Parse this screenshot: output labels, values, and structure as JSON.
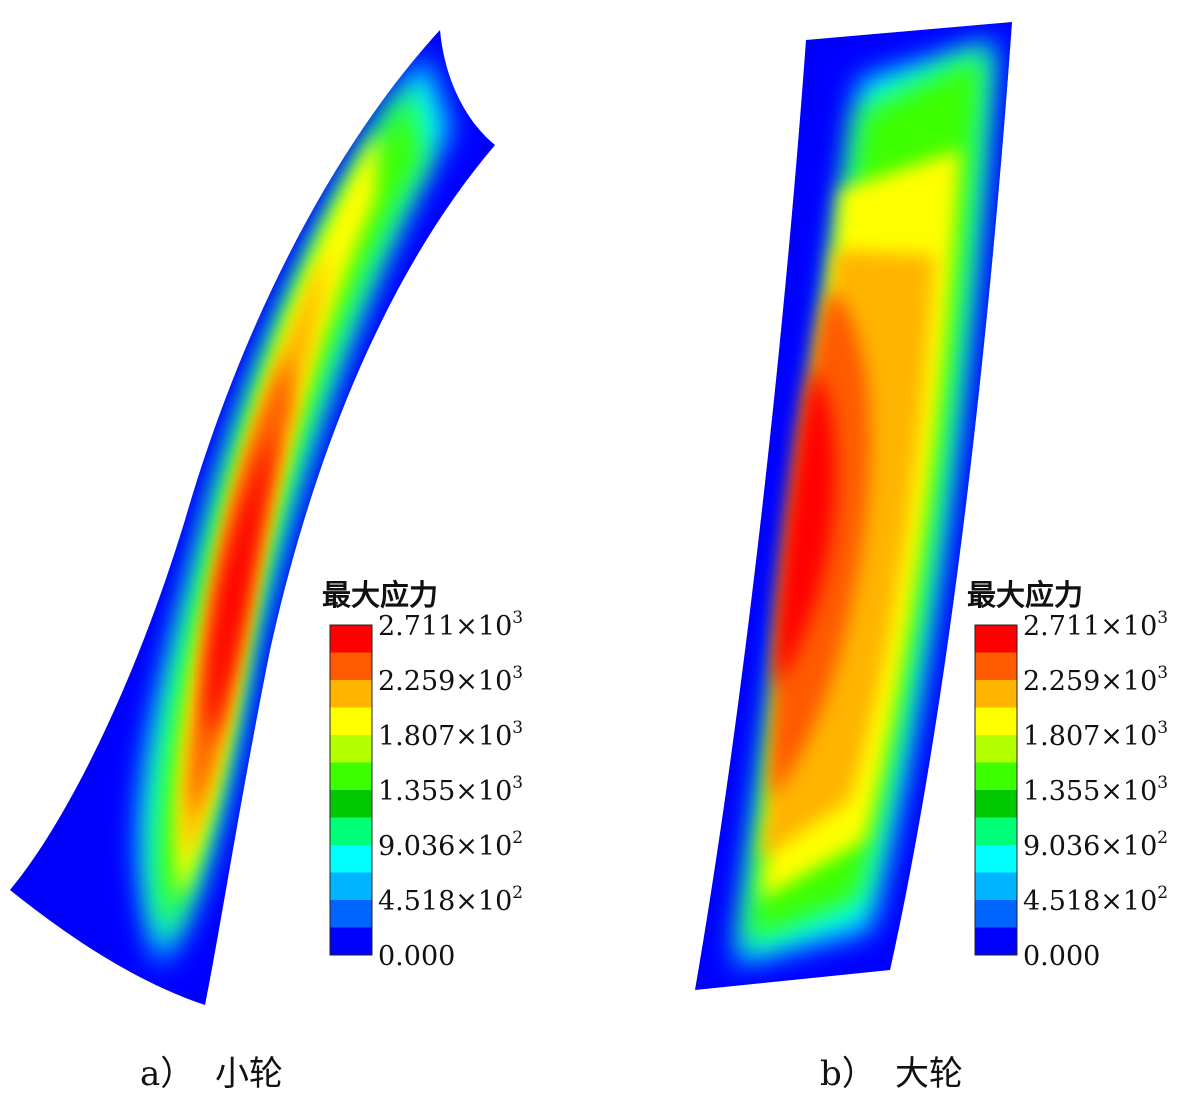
{
  "panels": [
    {
      "id": "pinion",
      "legend_title": "最大应力",
      "caption_letter": "a）",
      "caption_text": "小轮"
    },
    {
      "id": "gear",
      "legend_title": "最大应力",
      "caption_letter": "b）",
      "caption_text": "大轮"
    }
  ],
  "legend": {
    "labels": [
      {
        "mant": "2.711",
        "exp": "3"
      },
      {
        "mant": "2.259",
        "exp": "3"
      },
      {
        "mant": "1.807",
        "exp": "3"
      },
      {
        "mant": "1.355",
        "exp": "3"
      },
      {
        "mant": "9.036",
        "exp": "2"
      },
      {
        "mant": "4.518",
        "exp": "2"
      },
      {
        "mant": "0.000",
        "exp": ""
      }
    ],
    "times_sign": "×10",
    "colors": [
      "#ff0000",
      "#ff5a00",
      "#ffb400",
      "#ffff00",
      "#b4ff00",
      "#3cff00",
      "#00c800",
      "#00ff78",
      "#00ffff",
      "#00b4ff",
      "#0064ff",
      "#0000ff"
    ]
  }
}
